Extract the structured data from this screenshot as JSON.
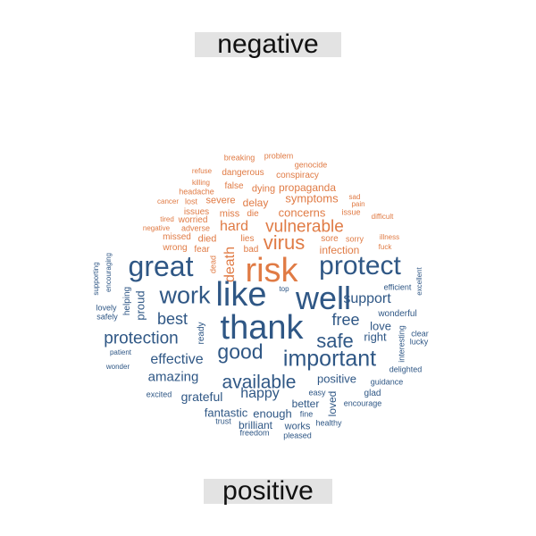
{
  "labels": {
    "negative": "negative",
    "positive": "positive"
  },
  "colors": {
    "negative": "#e07b45",
    "positive": "#2f5785"
  },
  "negative_words": [
    "breaking",
    "problem",
    "genocide",
    "refuse",
    "dangerous",
    "conspiracy",
    "killing",
    "headache",
    "false",
    "dying",
    "propaganda",
    "sad",
    "cancer",
    "lost",
    "severe",
    "delay",
    "symptoms",
    "pain",
    "issues",
    "miss",
    "die",
    "concerns",
    "issue",
    "difficult",
    "tired",
    "worried",
    "hard",
    "vulnerable",
    "negative",
    "adverse",
    "illness",
    "missed",
    "died",
    "lies",
    "virus",
    "sore",
    "sorry",
    "wrong",
    "fear",
    "bad",
    "infection",
    "fuck",
    "death",
    "dead",
    "risk"
  ],
  "positive_words": [
    "supporting",
    "encouraging",
    "great",
    "protect",
    "excellent",
    "efficient",
    "lovely",
    "safely",
    "helping",
    "proud",
    "top",
    "like",
    "well",
    "support",
    "wonderful",
    "work",
    "best",
    "free",
    "love",
    "ready",
    "thank",
    "clear",
    "lucky",
    "patient",
    "protection",
    "safe",
    "right",
    "interesting",
    "good",
    "wonder",
    "effective",
    "important",
    "delighted",
    "amazing",
    "guidance",
    "available",
    "positive",
    "excited",
    "grateful",
    "happy",
    "easy",
    "glad",
    "better",
    "encourage",
    "loved",
    "fantastic",
    "enough",
    "fine",
    "trust",
    "brilliant",
    "works",
    "healthy",
    "freedom",
    "pleased"
  ]
}
